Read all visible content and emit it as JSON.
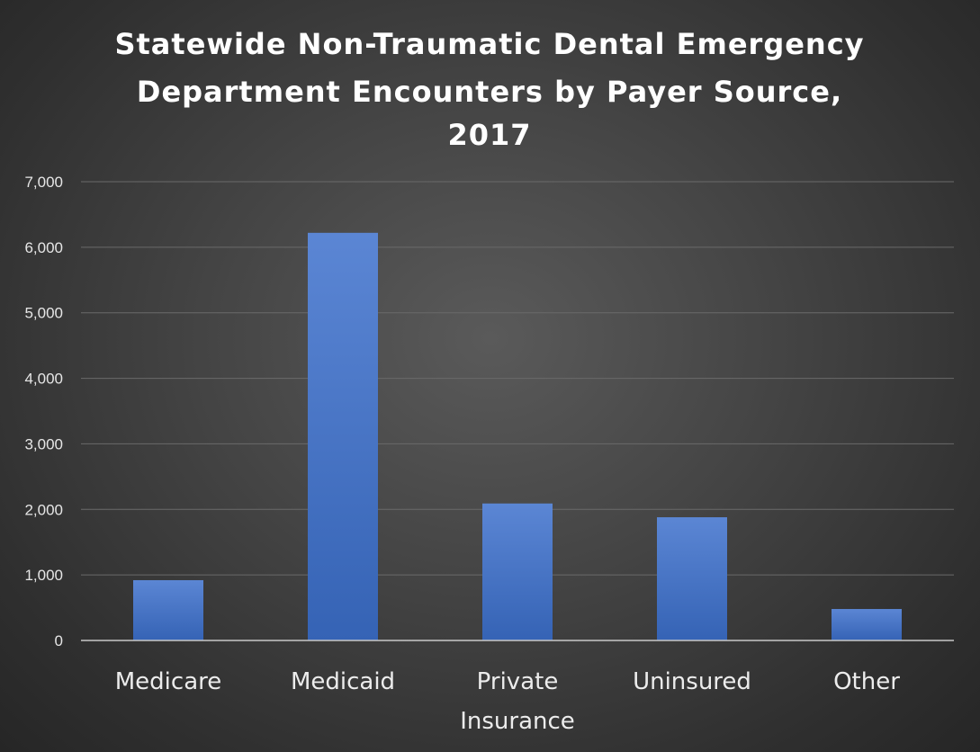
{
  "chart_data": {
    "type": "bar",
    "title": "Statewide Non-Traumatic Dental Emergency Department Encounters by Payer Source, 2017",
    "title_lines": [
      "Statewide Non-Traumatic Dental Emergency",
      "Department Encounters by Payer Source,",
      "2017"
    ],
    "categories": [
      "Medicare",
      "Medicaid",
      "Private Insurance",
      "Uninsured",
      "Other"
    ],
    "category_lines": [
      [
        "Medicare"
      ],
      [
        "Medicaid"
      ],
      [
        "Private",
        "Insurance"
      ],
      [
        "Uninsured"
      ],
      [
        "Other"
      ]
    ],
    "values": [
      920,
      6220,
      2090,
      1880,
      480
    ],
    "xlabel": "",
    "ylabel": "",
    "ylim": [
      0,
      7000
    ],
    "yticks": [
      0,
      1000,
      2000,
      3000,
      4000,
      5000,
      6000,
      7000
    ],
    "ytick_labels": [
      "0",
      "1,000",
      "2,000",
      "3,000",
      "4,000",
      "5,000",
      "6,000",
      "7,000"
    ],
    "grid": true,
    "legend": "none",
    "colors": {
      "bar": "#4472c4",
      "bar_light": "#5b86d4",
      "bar_dark": "#3563b5",
      "background": "#3c3c3c",
      "text": "#ffffff"
    }
  }
}
